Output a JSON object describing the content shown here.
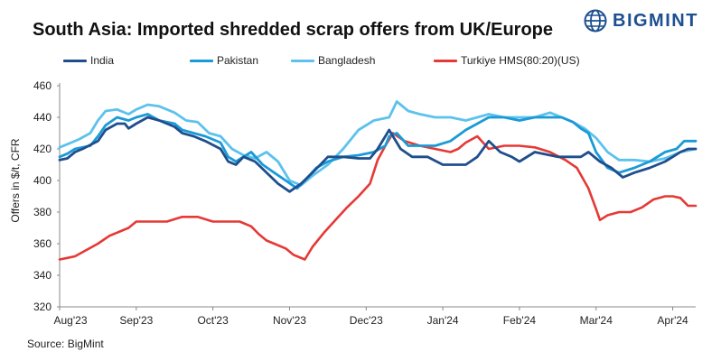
{
  "header": {
    "title": "South Asia: Imported shredded scrap offers from UK/Europe",
    "logo_text": "BIGMINT",
    "logo_icon": "bigmint-globe-icon"
  },
  "source": "Source: BigMint",
  "chart_data": {
    "type": "line",
    "ylabel": "Offers in $/t, CFR",
    "xlabel": "",
    "ylim": [
      320,
      460
    ],
    "yticks": [
      320,
      340,
      360,
      380,
      400,
      420,
      440,
      460
    ],
    "xticks": [
      "Aug'23",
      "Sep'23",
      "Oct'23",
      "Nov'23",
      "Dec'23",
      "Jan'24",
      "Feb'24",
      "Mar'24",
      "Apr'24"
    ],
    "grid": false,
    "legend_position": "top",
    "series": [
      {
        "name": "India",
        "color": "#1f4e8c",
        "x": [
          0,
          0.1,
          0.2,
          0.3,
          0.5,
          0.6,
          0.75,
          0.85,
          0.9,
          1.0,
          1.15,
          1.3,
          1.5,
          1.6,
          1.75,
          1.9,
          2.1,
          2.2,
          2.3,
          2.4,
          2.55,
          2.7,
          2.85,
          3.0,
          3.15,
          3.3,
          3.5,
          3.7,
          3.9,
          4.05,
          4.15,
          4.25,
          4.3,
          4.45,
          4.6,
          4.8,
          5.0,
          5.1,
          5.2,
          5.3,
          5.45,
          5.6,
          5.75,
          5.9,
          6.0,
          6.2,
          6.5,
          6.7,
          6.8,
          6.9,
          7.05,
          7.2,
          7.35,
          7.5,
          7.7,
          7.9,
          8.0,
          8.1,
          8.2,
          8.3
        ],
        "values": [
          413,
          414,
          418,
          420,
          425,
          432,
          436,
          436,
          433,
          436,
          440,
          438,
          434,
          430,
          428,
          425,
          420,
          412,
          410,
          415,
          412,
          405,
          398,
          393,
          398,
          405,
          415,
          415,
          414,
          414,
          420,
          428,
          432,
          420,
          415,
          415,
          410,
          410,
          410,
          410,
          415,
          425,
          418,
          415,
          412,
          418,
          415,
          415,
          415,
          418,
          412,
          408,
          402,
          405,
          408,
          412,
          415,
          418,
          420,
          420
        ]
      },
      {
        "name": "Pakistan",
        "color": "#1a9ad6",
        "x": [
          0,
          0.1,
          0.2,
          0.4,
          0.5,
          0.6,
          0.75,
          0.9,
          1.0,
          1.15,
          1.3,
          1.5,
          1.6,
          1.75,
          1.9,
          2.1,
          2.2,
          2.3,
          2.5,
          2.65,
          2.8,
          2.95,
          3.1,
          3.2,
          3.35,
          3.5,
          3.7,
          3.9,
          4.1,
          4.25,
          4.3,
          4.4,
          4.55,
          4.7,
          4.9,
          5.1,
          5.3,
          5.45,
          5.6,
          5.8,
          6.0,
          6.2,
          6.4,
          6.55,
          6.7,
          6.8,
          6.9,
          7.0,
          7.15,
          7.3,
          7.5,
          7.7,
          7.9,
          8.05,
          8.15,
          8.3
        ],
        "values": [
          415,
          417,
          420,
          422,
          428,
          435,
          440,
          438,
          440,
          442,
          438,
          436,
          432,
          430,
          428,
          424,
          415,
          412,
          418,
          410,
          405,
          400,
          395,
          400,
          408,
          412,
          415,
          416,
          418,
          422,
          428,
          430,
          422,
          422,
          422,
          425,
          432,
          436,
          440,
          440,
          438,
          440,
          440,
          440,
          437,
          433,
          430,
          418,
          408,
          405,
          408,
          412,
          418,
          420,
          425,
          425
        ]
      },
      {
        "name": "Bangladesh",
        "color": "#5cc2ed",
        "x": [
          0,
          0.1,
          0.25,
          0.4,
          0.5,
          0.6,
          0.75,
          0.9,
          1.0,
          1.15,
          1.3,
          1.5,
          1.65,
          1.8,
          1.95,
          2.1,
          2.25,
          2.4,
          2.55,
          2.7,
          2.85,
          3.0,
          3.15,
          3.3,
          3.5,
          3.7,
          3.9,
          4.1,
          4.3,
          4.4,
          4.55,
          4.7,
          4.9,
          5.1,
          5.3,
          5.45,
          5.6,
          5.8,
          6.0,
          6.2,
          6.4,
          6.55,
          6.7,
          6.85,
          7.0,
          7.15,
          7.3,
          7.5,
          7.7,
          7.9,
          8.1,
          8.3
        ],
        "values": [
          421,
          423,
          426,
          430,
          438,
          444,
          445,
          442,
          445,
          448,
          447,
          443,
          438,
          437,
          430,
          428,
          420,
          416,
          414,
          418,
          412,
          400,
          397,
          403,
          410,
          420,
          432,
          438,
          440,
          450,
          444,
          442,
          440,
          440,
          438,
          440,
          442,
          440,
          440,
          440,
          443,
          440,
          437,
          433,
          427,
          418,
          413,
          413,
          412,
          414,
          418,
          420
        ]
      },
      {
        "name": "Turkiye HMS(80:20)(US)",
        "color": "#e53935",
        "x": [
          0,
          0.1,
          0.2,
          0.35,
          0.5,
          0.65,
          0.8,
          0.9,
          1.0,
          1.2,
          1.4,
          1.6,
          1.8,
          2.0,
          2.2,
          2.35,
          2.5,
          2.6,
          2.7,
          2.8,
          2.95,
          3.05,
          3.2,
          3.3,
          3.45,
          3.6,
          3.75,
          3.9,
          4.05,
          4.15,
          4.25,
          4.35,
          4.5,
          4.7,
          4.9,
          5.1,
          5.2,
          5.3,
          5.45,
          5.6,
          5.8,
          6.0,
          6.2,
          6.4,
          6.6,
          6.75,
          6.9,
          7.0,
          7.05,
          7.15,
          7.3,
          7.45,
          7.6,
          7.75,
          7.9,
          8.0,
          8.1,
          8.2,
          8.3
        ],
        "values": [
          350,
          351,
          352,
          356,
          360,
          365,
          368,
          370,
          374,
          374,
          374,
          377,
          377,
          374,
          374,
          374,
          371,
          366,
          362,
          360,
          357,
          353,
          350,
          358,
          367,
          375,
          383,
          390,
          398,
          413,
          422,
          430,
          425,
          422,
          420,
          418,
          420,
          424,
          428,
          420,
          422,
          422,
          421,
          418,
          413,
          408,
          395,
          382,
          375,
          378,
          380,
          380,
          383,
          388,
          390,
          390,
          389,
          384,
          384
        ]
      }
    ]
  }
}
